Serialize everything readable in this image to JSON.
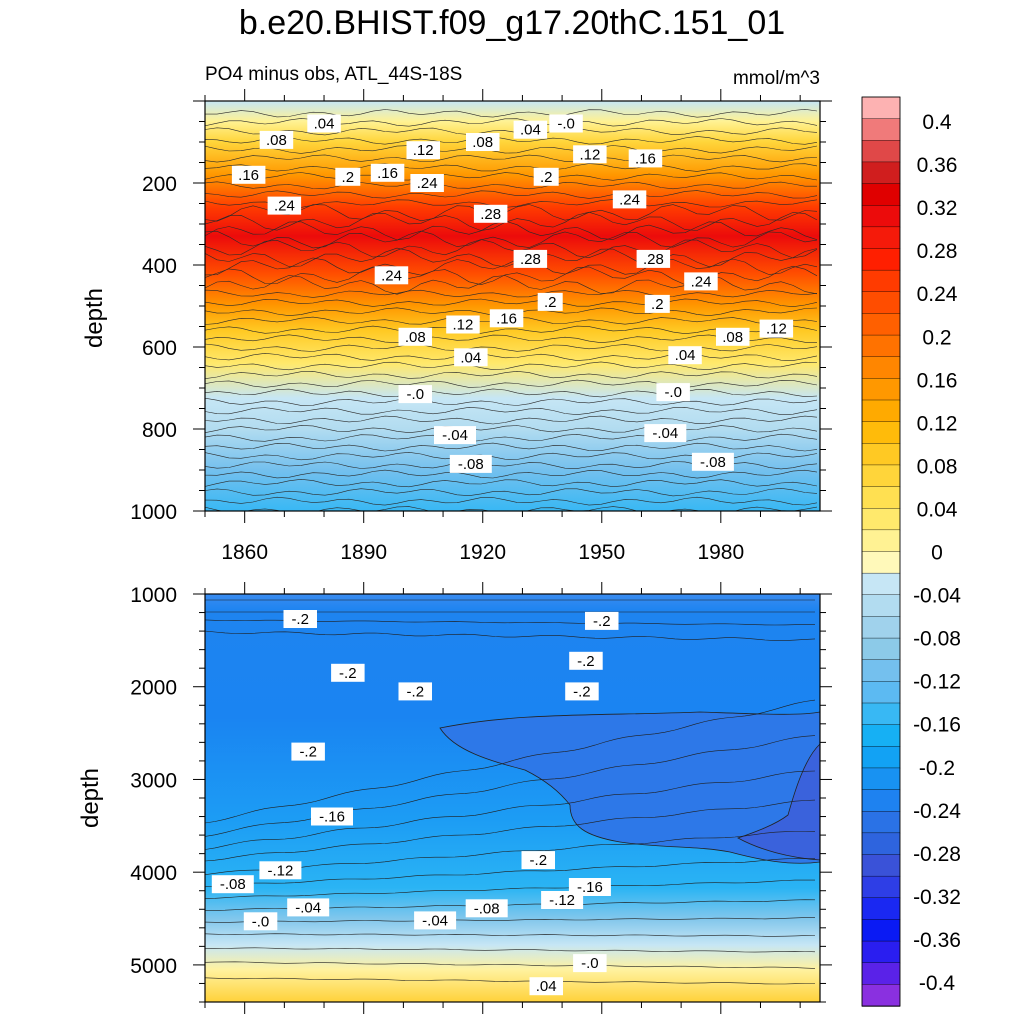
{
  "figure": {
    "title": "b.e20.BHIST.f09_g17.20thC.151_01",
    "subtitle_left": "PO4 minus obs, ATL_44S-18S",
    "subtitle_right": "mmol/m^3"
  },
  "chart_data": [
    {
      "type": "contour",
      "name": "upper panel",
      "title": "PO4 minus obs, ATL_44S-18S",
      "units": "mmol/m^3",
      "xlabel": "",
      "ylabel": "depth",
      "xlim": [
        1850,
        2005
      ],
      "ylim": [
        1000,
        0
      ],
      "xticks": [
        1860,
        1890,
        1920,
        1950,
        1980
      ],
      "xtick_labels": [
        "1860",
        "1890",
        "1920",
        "1950",
        "1980"
      ],
      "yticks": [
        200,
        400,
        600,
        800,
        1000
      ],
      "ytick_labels": [
        "200",
        "400",
        "600",
        "800",
        "1000"
      ],
      "depth_profile": [
        {
          "depth": 0,
          "value": -0.02
        },
        {
          "depth": 50,
          "value": 0.02
        },
        {
          "depth": 100,
          "value": 0.08
        },
        {
          "depth": 180,
          "value": 0.16
        },
        {
          "depth": 260,
          "value": 0.26
        },
        {
          "depth": 330,
          "value": 0.31
        },
        {
          "depth": 420,
          "value": 0.24
        },
        {
          "depth": 500,
          "value": 0.16
        },
        {
          "depth": 560,
          "value": 0.1
        },
        {
          "depth": 640,
          "value": 0.04
        },
        {
          "depth": 725,
          "value": -0.01
        },
        {
          "depth": 800,
          "value": -0.04
        },
        {
          "depth": 900,
          "value": -0.09
        },
        {
          "depth": 1000,
          "value": -0.13
        }
      ],
      "contour_labels": [
        {
          "text": ".08",
          "x": 1868,
          "y": 95
        },
        {
          "text": ".04",
          "x": 1880,
          "y": 55
        },
        {
          "text": ".08",
          "x": 1920,
          "y": 100
        },
        {
          "text": ".04",
          "x": 1932,
          "y": 70
        },
        {
          "text": "-.0",
          "x": 1941,
          "y": 55
        },
        {
          "text": ".12",
          "x": 1905,
          "y": 120
        },
        {
          "text": ".12",
          "x": 1947,
          "y": 130
        },
        {
          "text": ".16",
          "x": 1861,
          "y": 180
        },
        {
          "text": ".2",
          "x": 1886,
          "y": 185
        },
        {
          "text": ".16",
          "x": 1896,
          "y": 175
        },
        {
          "text": ".24",
          "x": 1906,
          "y": 200
        },
        {
          "text": ".2",
          "x": 1936,
          "y": 185
        },
        {
          "text": ".16",
          "x": 1961,
          "y": 140
        },
        {
          "text": ".24",
          "x": 1870,
          "y": 255
        },
        {
          "text": ".28",
          "x": 1922,
          "y": 275
        },
        {
          "text": ".24",
          "x": 1957,
          "y": 240
        },
        {
          "text": ".28",
          "x": 1932,
          "y": 385
        },
        {
          "text": ".28",
          "x": 1963,
          "y": 385
        },
        {
          "text": ".24",
          "x": 1897,
          "y": 425
        },
        {
          "text": ".24",
          "x": 1975,
          "y": 440
        },
        {
          "text": ".2",
          "x": 1937,
          "y": 490
        },
        {
          "text": ".2",
          "x": 1964,
          "y": 495
        },
        {
          "text": ".16",
          "x": 1926,
          "y": 530
        },
        {
          "text": ".12",
          "x": 1915,
          "y": 545
        },
        {
          "text": ".12",
          "x": 1994,
          "y": 555
        },
        {
          "text": ".08",
          "x": 1903,
          "y": 575
        },
        {
          "text": ".08",
          "x": 1983,
          "y": 575
        },
        {
          "text": ".04",
          "x": 1917,
          "y": 625
        },
        {
          "text": ".04",
          "x": 1971,
          "y": 620
        },
        {
          "text": "-.0",
          "x": 1903,
          "y": 715
        },
        {
          "text": "-.0",
          "x": 1968,
          "y": 710
        },
        {
          "text": "-.04",
          "x": 1913,
          "y": 815
        },
        {
          "text": "-.04",
          "x": 1966,
          "y": 810
        },
        {
          "text": "-.08",
          "x": 1917,
          "y": 885
        },
        {
          "text": "-.08",
          "x": 1978,
          "y": 880
        }
      ]
    },
    {
      "type": "contour",
      "name": "lower panel",
      "xlabel": "",
      "ylabel": "depth",
      "xlim": [
        1850,
        2005
      ],
      "ylim": [
        5400,
        1000
      ],
      "yticks": [
        1000,
        2000,
        3000,
        4000,
        5000
      ],
      "ytick_labels": [
        "1000",
        "2000",
        "3000",
        "4000",
        "5000"
      ],
      "contour_labels": [
        {
          "text": "-.2",
          "x": 1874,
          "y": 1270
        },
        {
          "text": "-.2",
          "x": 1950,
          "y": 1290
        },
        {
          "text": "-.2",
          "x": 1946,
          "y": 1720
        },
        {
          "text": "-.2",
          "x": 1886,
          "y": 1850
        },
        {
          "text": "-.2",
          "x": 1903,
          "y": 2050
        },
        {
          "text": "-.2",
          "x": 1945,
          "y": 2050
        },
        {
          "text": "-.2",
          "x": 1876,
          "y": 2700
        },
        {
          "text": "-.16",
          "x": 1882,
          "y": 3400
        },
        {
          "text": "-.2",
          "x": 1934,
          "y": 3870
        },
        {
          "text": "-.12",
          "x": 1869,
          "y": 3980
        },
        {
          "text": "-.08",
          "x": 1857,
          "y": 4130
        },
        {
          "text": "-.16",
          "x": 1947,
          "y": 4160
        },
        {
          "text": "-.12",
          "x": 1940,
          "y": 4300
        },
        {
          "text": "-.04",
          "x": 1876,
          "y": 4380
        },
        {
          "text": "-.08",
          "x": 1921,
          "y": 4390
        },
        {
          "text": "-.04",
          "x": 1908,
          "y": 4520
        },
        {
          "text": "-.0",
          "x": 1864,
          "y": 4530
        },
        {
          "text": "-.0",
          "x": 1947,
          "y": 4980
        },
        {
          "text": ".04",
          "x": 1936,
          "y": 5230
        }
      ]
    },
    {
      "type": "colorbar",
      "tick_labels": [
        "0.4",
        "0.36",
        "0.32",
        "0.28",
        "0.24",
        "0.2",
        "0.16",
        "0.12",
        "0.08",
        "0.04",
        "0",
        "-0.04",
        "-0.08",
        "-0.12",
        "-0.16",
        "-0.2",
        "-0.24",
        "-0.28",
        "-0.32",
        "-0.36",
        "-0.4"
      ],
      "colors_top_to_bottom": [
        "#fdb2b2",
        "#f07a7a",
        "#e04848",
        "#d01e1e",
        "#e00000",
        "#ec0b0b",
        "#f51a0a",
        "#ff1f00",
        "#ff3b00",
        "#ff4d00",
        "#ff6000",
        "#ff7200",
        "#ff8600",
        "#ff9800",
        "#ffaa00",
        "#ffbb0a",
        "#ffc923",
        "#ffd53a",
        "#ffe051",
        "#ffe96c",
        "#fff293",
        "#fff9ba",
        "#c6e6f5",
        "#b2dcf0",
        "#a0d2ec",
        "#8ccae8",
        "#74c0ee",
        "#5cbaf2",
        "#38b8f4",
        "#16b0f4",
        "#12a2f4",
        "#1892f2",
        "#1e82f0",
        "#2a72e6",
        "#2e64de",
        "#3a52d8",
        "#2e3ee6",
        "#1a28f2",
        "#0a1af4",
        "#2a1ef0",
        "#5a22e8",
        "#8a30e0"
      ]
    }
  ]
}
